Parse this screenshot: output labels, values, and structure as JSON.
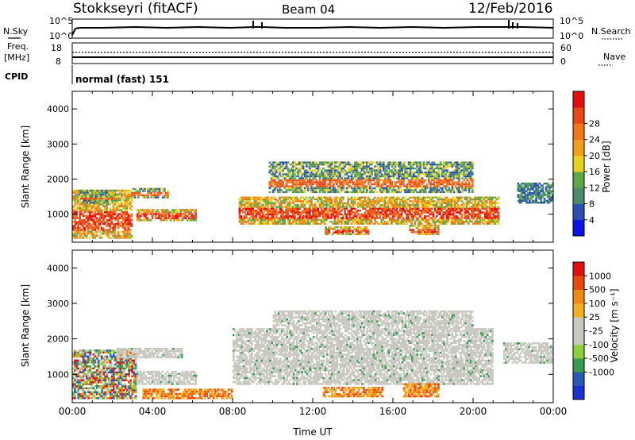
{
  "header": {
    "station": "Stokkseyri (fitACF)",
    "beam": "Beam 04",
    "date": "12/Feb/2016"
  },
  "strips": {
    "nsky_label": "N.Sky",
    "nsky_ticks": [
      "10^5",
      "10^0"
    ],
    "nsearch_label": "N.Search",
    "freq_label_1": "Freq.",
    "freq_label_2": "[MHz]",
    "freq_ticks": [
      "18",
      "8"
    ],
    "nave_ticks": [
      "60",
      "0"
    ],
    "nave_label": "Nave",
    "cpid_label": "CPID",
    "cpid_value": "normal (fast) 151"
  },
  "colors": {
    "power_scale": [
      "#0a14e6",
      "#2b4fb3",
      "#4b8a6a",
      "#5ea84a",
      "#e8d020",
      "#f0a018",
      "#f07818",
      "#e84818",
      "#e01010"
    ],
    "velocity_scale": [
      "#e01010",
      "#e84a10",
      "#f08a10",
      "#f0b020",
      "#c8c8c0",
      "#c8c8c0",
      "#8cd040",
      "#3a9a50",
      "#2a5ab8",
      "#1a30d0"
    ]
  },
  "chart_data": [
    {
      "type": "heatmap",
      "name": "power",
      "ylabel": "Slant Range [km]",
      "yticks": [
        "1000",
        "2000",
        "3000",
        "4000"
      ],
      "ylim": [
        200,
        4500
      ],
      "xlim": [
        "00:00",
        "24:00"
      ],
      "colorbar_label": "Power [dB]",
      "colorbar_ticks": [
        "4",
        "8",
        "12",
        "16",
        "20",
        "24",
        "28"
      ],
      "bands": [
        {
          "t0": 0.0,
          "t1": 3.0,
          "r0": 300,
          "r1": 1700,
          "level": "high"
        },
        {
          "t0": 0.3,
          "t1": 2.2,
          "r0": 1300,
          "r1": 1700,
          "level": "mid"
        },
        {
          "t0": 3.0,
          "t1": 4.8,
          "r0": 1450,
          "r1": 1750,
          "level": "mid"
        },
        {
          "t0": 3.2,
          "t1": 6.2,
          "r0": 800,
          "r1": 1150,
          "level": "high"
        },
        {
          "t0": 8.3,
          "t1": 21.3,
          "r0": 700,
          "r1": 1500,
          "level": "high"
        },
        {
          "t0": 9.8,
          "t1": 20.0,
          "r0": 1600,
          "r1": 2500,
          "level": "mid"
        },
        {
          "t0": 12.6,
          "t1": 14.8,
          "r0": 400,
          "r1": 650,
          "level": "high"
        },
        {
          "t0": 16.8,
          "t1": 18.3,
          "r0": 400,
          "r1": 700,
          "level": "high"
        },
        {
          "t0": 22.2,
          "t1": 24.0,
          "r0": 1300,
          "r1": 1900,
          "level": "low"
        }
      ]
    },
    {
      "type": "heatmap",
      "name": "velocity",
      "ylabel": "Slant Range [km]",
      "yticks": [
        "1000",
        "2000",
        "3000",
        "4000"
      ],
      "ylim": [
        200,
        4500
      ],
      "xlim": [
        "00:00",
        "24:00"
      ],
      "xlabel": "Time UT",
      "xticks": [
        "00:00",
        "04:00",
        "08:00",
        "12:00",
        "16:00",
        "20:00",
        "00:00"
      ],
      "colorbar_label": "Velocity [m s⁻¹]",
      "colorbar_ticks": [
        "1000",
        "500",
        "100",
        "25",
        "-25",
        "-100",
        "-500",
        "-1000"
      ],
      "bands": [
        {
          "t0": 0.0,
          "t1": 3.2,
          "r0": 300,
          "r1": 1700,
          "level": "mixed"
        },
        {
          "t0": 2.2,
          "t1": 5.5,
          "r0": 1450,
          "r1": 1750,
          "level": "grey"
        },
        {
          "t0": 3.2,
          "t1": 6.2,
          "r0": 700,
          "r1": 1100,
          "level": "grey"
        },
        {
          "t0": 3.5,
          "t1": 8.0,
          "r0": 300,
          "r1": 600,
          "level": "orange"
        },
        {
          "t0": 8.0,
          "t1": 21.0,
          "r0": 700,
          "r1": 2300,
          "level": "grey"
        },
        {
          "t0": 10.0,
          "t1": 20.0,
          "r0": 2300,
          "r1": 2800,
          "level": "grey"
        },
        {
          "t0": 12.5,
          "t1": 15.5,
          "r0": 350,
          "r1": 650,
          "level": "orange"
        },
        {
          "t0": 16.5,
          "t1": 18.3,
          "r0": 350,
          "r1": 750,
          "level": "orange"
        },
        {
          "t0": 21.5,
          "t1": 24.0,
          "r0": 1300,
          "r1": 1900,
          "level": "grey"
        }
      ]
    }
  ]
}
